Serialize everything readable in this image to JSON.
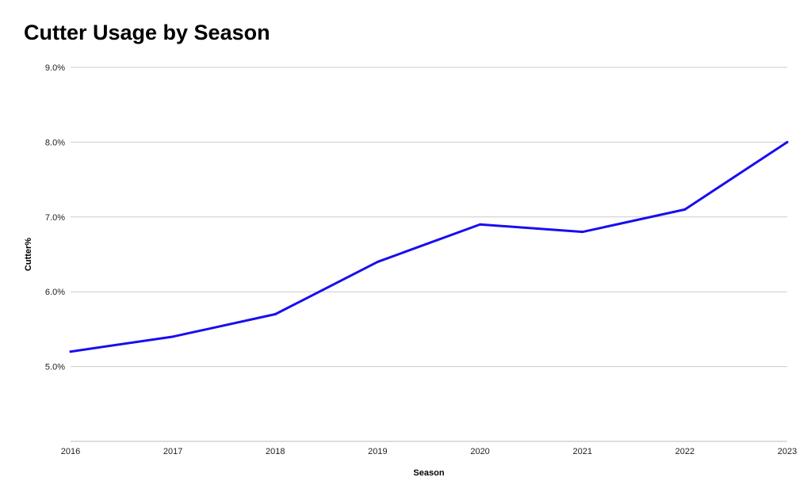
{
  "chart_data": {
    "type": "line",
    "title": "Cutter Usage by Season",
    "xlabel": "Season",
    "ylabel": "Cutter%",
    "categories": [
      "2016",
      "2017",
      "2018",
      "2019",
      "2020",
      "2021",
      "2022",
      "2023"
    ],
    "series": [
      {
        "values": [
          5.2,
          5.4,
          5.7,
          6.4,
          6.9,
          6.8,
          7.1,
          8.0
        ],
        "color": "#1a0dee"
      }
    ],
    "ylim": [
      4.0,
      9.0
    ],
    "yticks": [
      5.0,
      6.0,
      7.0,
      8.0,
      9.0
    ],
    "ytick_labels": [
      "5.0%",
      "6.0%",
      "7.0%",
      "8.0%",
      "9.0%"
    ],
    "grid": true,
    "legend": "none"
  }
}
